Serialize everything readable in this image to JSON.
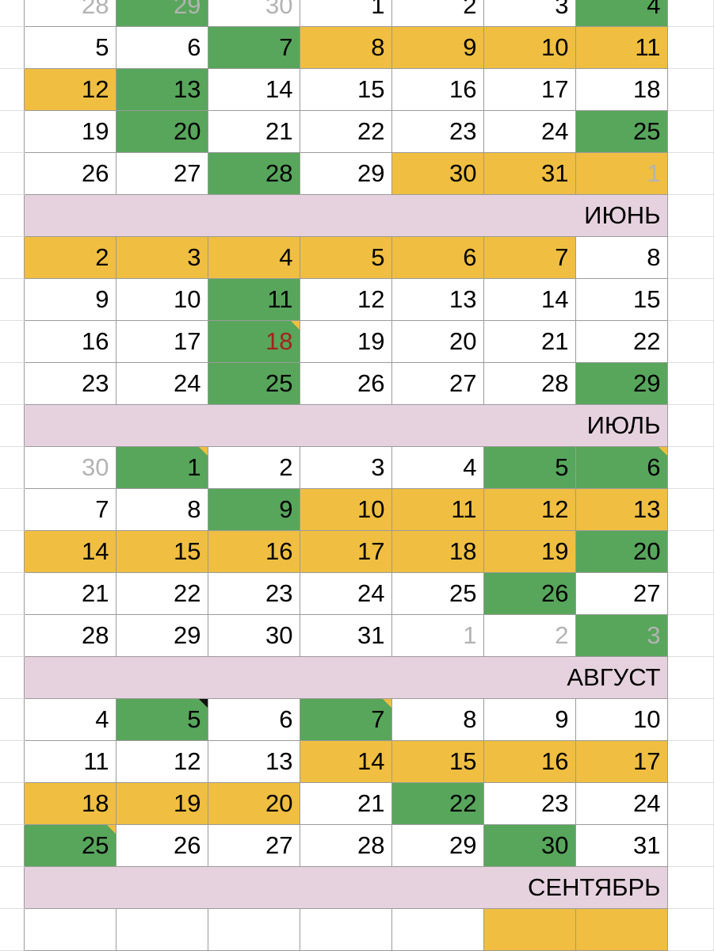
{
  "colors": {
    "w": "#ffffff",
    "g": "#57a65b",
    "y": "#f0be40",
    "month_header": "#e6d2de",
    "muted_text": "#b3b3b3",
    "red_text": "#a3231b"
  },
  "legend_codes": {
    "w": "plain",
    "g": "green",
    "y": "yellow",
    "m": "other-month day",
    "ny": "yellow comment marker",
    "nb": "black comment marker",
    "r": "red text"
  },
  "blocks": [
    {
      "month": "",
      "weeks": [
        [
          [
            "28",
            "w",
            "m"
          ],
          [
            "29",
            "g",
            "m"
          ],
          [
            "30",
            "w",
            "m"
          ],
          [
            "1",
            "w"
          ],
          [
            "2",
            "w"
          ],
          [
            "3",
            "w"
          ],
          [
            "4",
            "g"
          ]
        ],
        [
          [
            "5",
            "w"
          ],
          [
            "6",
            "w"
          ],
          [
            "7",
            "g"
          ],
          [
            "8",
            "y"
          ],
          [
            "9",
            "y"
          ],
          [
            "10",
            "y"
          ],
          [
            "11",
            "y"
          ]
        ],
        [
          [
            "12",
            "y"
          ],
          [
            "13",
            "g"
          ],
          [
            "14",
            "w"
          ],
          [
            "15",
            "w"
          ],
          [
            "16",
            "w"
          ],
          [
            "17",
            "w"
          ],
          [
            "18",
            "w"
          ]
        ],
        [
          [
            "19",
            "w"
          ],
          [
            "20",
            "g"
          ],
          [
            "21",
            "w"
          ],
          [
            "22",
            "w"
          ],
          [
            "23",
            "w"
          ],
          [
            "24",
            "w"
          ],
          [
            "25",
            "g"
          ]
        ],
        [
          [
            "26",
            "w"
          ],
          [
            "27",
            "w"
          ],
          [
            "28",
            "g"
          ],
          [
            "29",
            "w"
          ],
          [
            "30",
            "y"
          ],
          [
            "31",
            "y"
          ],
          [
            "1",
            "y",
            "m"
          ]
        ]
      ]
    },
    {
      "month": "ИЮНЬ",
      "weeks": [
        [
          [
            "2",
            "y"
          ],
          [
            "3",
            "y"
          ],
          [
            "4",
            "y"
          ],
          [
            "5",
            "y"
          ],
          [
            "6",
            "y"
          ],
          [
            "7",
            "y"
          ],
          [
            "8",
            "w"
          ]
        ],
        [
          [
            "9",
            "w"
          ],
          [
            "10",
            "w"
          ],
          [
            "11",
            "g"
          ],
          [
            "12",
            "w"
          ],
          [
            "13",
            "w"
          ],
          [
            "14",
            "w"
          ],
          [
            "15",
            "w"
          ]
        ],
        [
          [
            "16",
            "w"
          ],
          [
            "17",
            "w"
          ],
          [
            "18",
            "g",
            "r ny"
          ],
          [
            "19",
            "w"
          ],
          [
            "20",
            "w"
          ],
          [
            "21",
            "w"
          ],
          [
            "22",
            "w"
          ]
        ],
        [
          [
            "23",
            "w"
          ],
          [
            "24",
            "w"
          ],
          [
            "25",
            "g"
          ],
          [
            "26",
            "w"
          ],
          [
            "27",
            "w"
          ],
          [
            "28",
            "w"
          ],
          [
            "29",
            "g"
          ]
        ]
      ]
    },
    {
      "month": "ИЮЛЬ",
      "weeks": [
        [
          [
            "30",
            "w",
            "m"
          ],
          [
            "1",
            "g",
            "ny"
          ],
          [
            "2",
            "w"
          ],
          [
            "3",
            "w"
          ],
          [
            "4",
            "w"
          ],
          [
            "5",
            "g"
          ],
          [
            "6",
            "g",
            "ny"
          ]
        ],
        [
          [
            "7",
            "w"
          ],
          [
            "8",
            "w"
          ],
          [
            "9",
            "g"
          ],
          [
            "10",
            "y"
          ],
          [
            "11",
            "y"
          ],
          [
            "12",
            "y"
          ],
          [
            "13",
            "y"
          ]
        ],
        [
          [
            "14",
            "y"
          ],
          [
            "15",
            "y"
          ],
          [
            "16",
            "y"
          ],
          [
            "17",
            "y"
          ],
          [
            "18",
            "y"
          ],
          [
            "19",
            "y"
          ],
          [
            "20",
            "g"
          ]
        ],
        [
          [
            "21",
            "w"
          ],
          [
            "22",
            "w"
          ],
          [
            "23",
            "w"
          ],
          [
            "24",
            "w"
          ],
          [
            "25",
            "w"
          ],
          [
            "26",
            "g"
          ],
          [
            "27",
            "w"
          ]
        ],
        [
          [
            "28",
            "w"
          ],
          [
            "29",
            "w"
          ],
          [
            "30",
            "w"
          ],
          [
            "31",
            "w"
          ],
          [
            "1",
            "w",
            "m"
          ],
          [
            "2",
            "w",
            "m"
          ],
          [
            "3",
            "g",
            "m"
          ]
        ]
      ]
    },
    {
      "month": "АВГУСТ",
      "weeks": [
        [
          [
            "4",
            "w"
          ],
          [
            "5",
            "g",
            "nb"
          ],
          [
            "6",
            "w"
          ],
          [
            "7",
            "g",
            "ny"
          ],
          [
            "8",
            "w"
          ],
          [
            "9",
            "w"
          ],
          [
            "10",
            "w"
          ]
        ],
        [
          [
            "11",
            "w"
          ],
          [
            "12",
            "w"
          ],
          [
            "13",
            "w"
          ],
          [
            "14",
            "y"
          ],
          [
            "15",
            "y"
          ],
          [
            "16",
            "y"
          ],
          [
            "17",
            "y"
          ]
        ],
        [
          [
            "18",
            "y"
          ],
          [
            "19",
            "y"
          ],
          [
            "20",
            "y"
          ],
          [
            "21",
            "w"
          ],
          [
            "22",
            "g"
          ],
          [
            "23",
            "w"
          ],
          [
            "24",
            "w"
          ]
        ],
        [
          [
            "25",
            "g",
            "ny"
          ],
          [
            "26",
            "w"
          ],
          [
            "27",
            "w"
          ],
          [
            "28",
            "w"
          ],
          [
            "29",
            "w"
          ],
          [
            "30",
            "g"
          ],
          [
            "31",
            "w"
          ]
        ]
      ]
    },
    {
      "month": "СЕНТЯБРЬ",
      "weeks": [
        [
          [
            "",
            "w"
          ],
          [
            "",
            "w"
          ],
          [
            "",
            "w"
          ],
          [
            "",
            "w"
          ],
          [
            "",
            "w"
          ],
          [
            "",
            "y"
          ],
          [
            "",
            "y"
          ]
        ]
      ]
    }
  ]
}
